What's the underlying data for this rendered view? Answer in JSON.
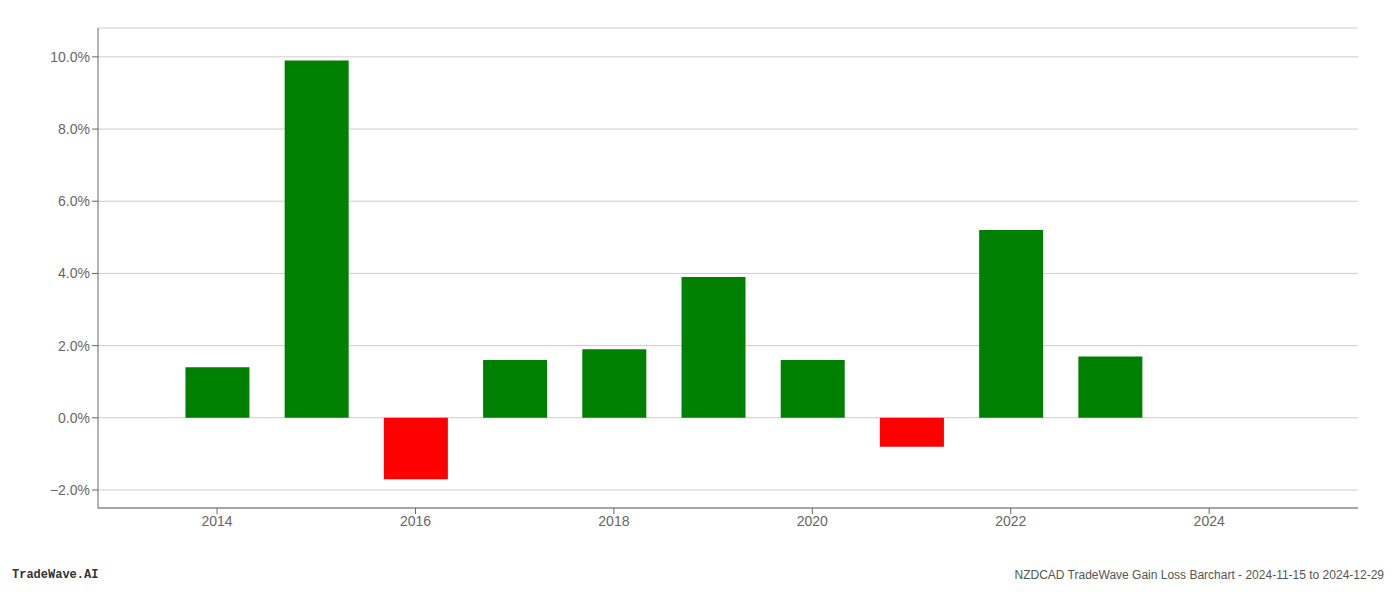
{
  "chart_data": {
    "type": "bar",
    "x": [
      2014,
      2015,
      2016,
      2017,
      2018,
      2019,
      2020,
      2021,
      2022,
      2023
    ],
    "values": [
      0.014,
      0.099,
      -0.017,
      0.016,
      0.019,
      0.039,
      0.016,
      -0.008,
      0.052,
      0.017
    ],
    "colors": [
      "#008000",
      "#008000",
      "#ff0000",
      "#008000",
      "#008000",
      "#008000",
      "#008000",
      "#ff0000",
      "#008000",
      "#008000"
    ],
    "xlim": [
      2012.8,
      2025.5
    ],
    "xticks": [
      2014,
      2016,
      2018,
      2020,
      2022,
      2024
    ],
    "ylim": [
      -0.025,
      0.108
    ],
    "yticks": [
      {
        "value": -0.02,
        "label": "−2.0%"
      },
      {
        "value": 0.0,
        "label": "0.0%"
      },
      {
        "value": 0.02,
        "label": "2.0%"
      },
      {
        "value": 0.04,
        "label": "4.0%"
      },
      {
        "value": 0.06,
        "label": "6.0%"
      },
      {
        "value": 0.08,
        "label": "8.0%"
      },
      {
        "value": 0.1,
        "label": "10.0%"
      }
    ],
    "grid": true,
    "annotations": [
      "TradeWave.AI",
      "NZDCAD TradeWave Gain Loss Barchart - 2024-11-15 to 2024-12-29"
    ]
  }
}
